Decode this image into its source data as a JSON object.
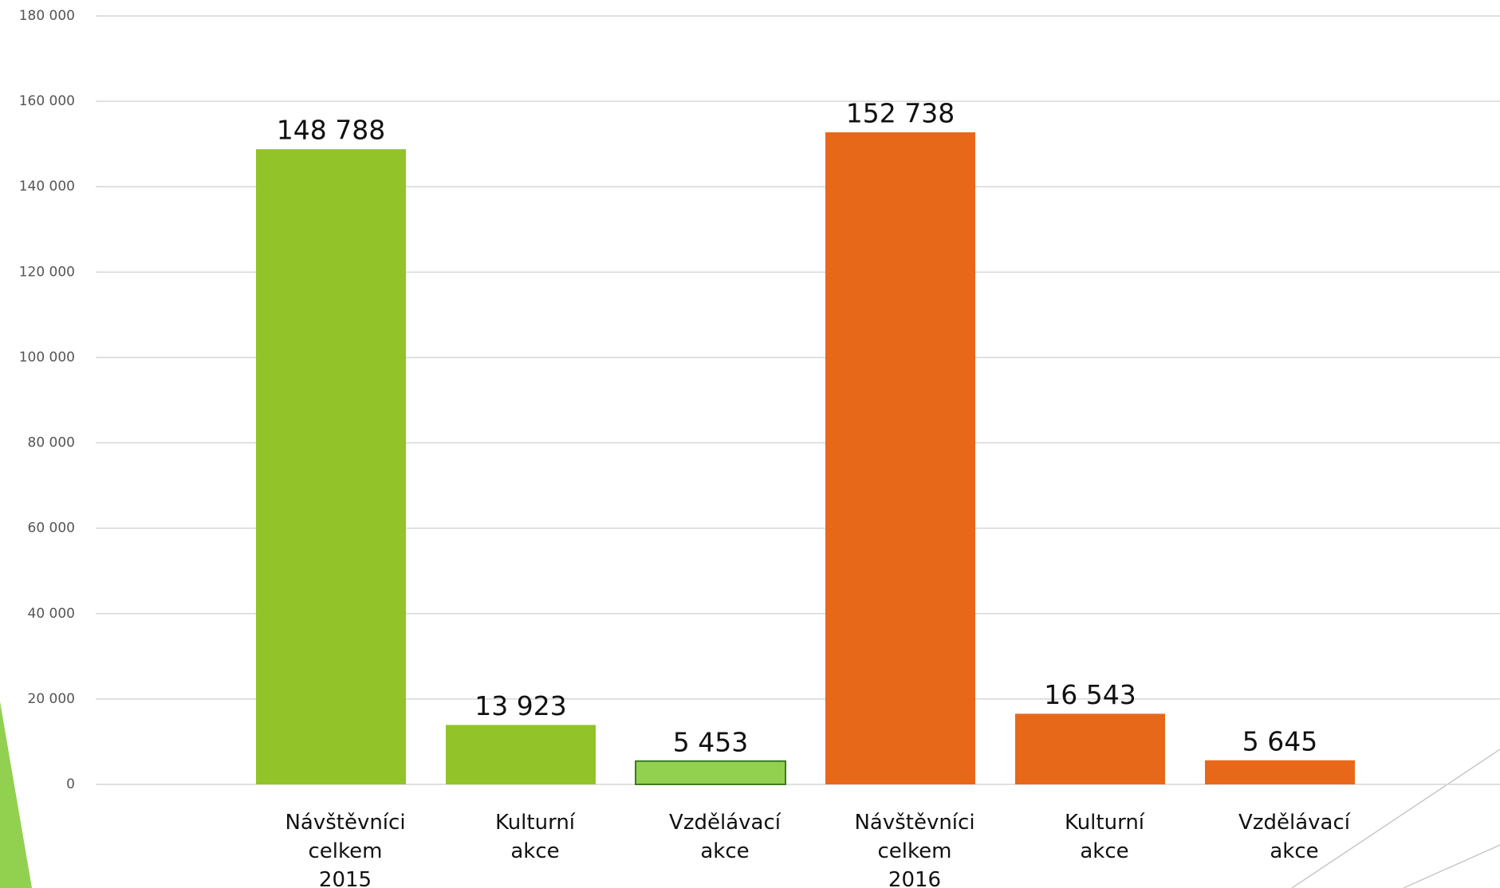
{
  "chart_data": {
    "type": "bar",
    "categories": [
      "Návštěvníci celkem 2015",
      "Kulturní akce",
      "Vzdělávací akce",
      "Návštěvníci celkem 2016",
      "Kulturní akce",
      "Vzdělávací akce"
    ],
    "values": [
      148788,
      13923,
      5453,
      152738,
      16543,
      5645
    ],
    "value_labels": [
      "148 788",
      "13 923",
      "5 453",
      "152 738",
      "16 543",
      "5 645"
    ],
    "colors": [
      "#92c42a",
      "#92c42a",
      "#92d050",
      "#e8681a",
      "#e8681a",
      "#e8681a"
    ],
    "edgecolors": [
      null,
      null,
      "#3a7d1e",
      null,
      null,
      null
    ],
    "ylim": [
      0,
      180000
    ],
    "yticks": [
      0,
      {
        "value": 20000,
        "label": "20 000"
      },
      {
        "value": 40000,
        "label": "40 000"
      },
      {
        "value": 60000,
        "label": "60 000"
      },
      {
        "value": 80000,
        "label": "80 000"
      },
      {
        "value": 100000,
        "label": "100 000"
      },
      {
        "value": 120000,
        "label": "120 000"
      },
      {
        "value": 140000,
        "label": "140 000"
      },
      {
        "value": 160000,
        "label": "160 000"
      },
      {
        "value": 180000,
        "label": "180 000"
      }
    ],
    "grid": true
  }
}
